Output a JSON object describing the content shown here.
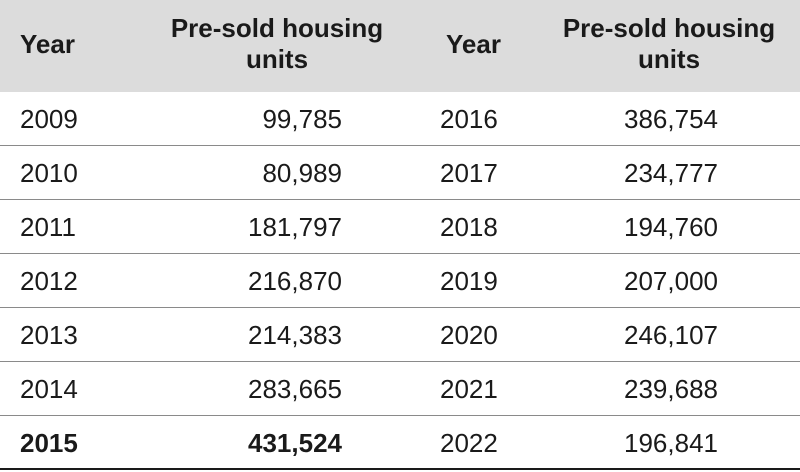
{
  "headers": {
    "year_left": "Year",
    "units_left": [
      "Pre-sold housing",
      "units"
    ],
    "year_right": "Year",
    "units_right": [
      "Pre-sold housing",
      "units"
    ]
  },
  "rows": [
    {
      "year1": "2009",
      "val1": "99,785",
      "year2": "2016",
      "val2": "386,754"
    },
    {
      "year1": "2010",
      "val1": "80,989",
      "year2": "2017",
      "val2": "234,777"
    },
    {
      "year1": "2011",
      "val1": "181,797",
      "year2": "2018",
      "val2": "194,760"
    },
    {
      "year1": "2012",
      "val1": "216,870",
      "year2": "2019",
      "val2": "207,000"
    },
    {
      "year1": "2013",
      "val1": "214,383",
      "year2": "2020",
      "val2": "246,107"
    },
    {
      "year1": "2014",
      "val1": "283,665",
      "year2": "2021",
      "val2": "239,688"
    },
    {
      "year1": "2015",
      "val1": "431,524",
      "year2": "2022",
      "val2": "196,841",
      "highlight_left": true
    }
  ]
}
